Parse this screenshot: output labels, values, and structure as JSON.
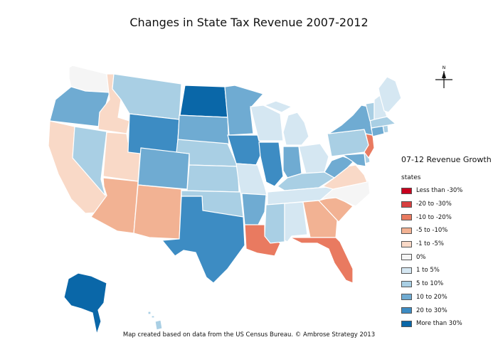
{
  "title": "Changes in State Tax Revenue 2007-2012",
  "legend": {
    "title": "07-12 Revenue Growth",
    "subtitle": "states",
    "items": [
      {
        "label": "Less than -30%",
        "color": "#c8001e"
      },
      {
        "label": "-20 to -30%",
        "color": "#d84040"
      },
      {
        "label": "-10 to -20%",
        "color": "#e97a60"
      },
      {
        "label": "-5 to -10%",
        "color": "#f2b293"
      },
      {
        "label": "-1 to -5%",
        "color": "#f9d9c7"
      },
      {
        "label": "0%",
        "color": "#f5f5f5"
      },
      {
        "label": "1 to 5%",
        "color": "#d5e7f2"
      },
      {
        "label": "5 to 10%",
        "color": "#a9cfe4"
      },
      {
        "label": "10 to 20%",
        "color": "#6fabd2"
      },
      {
        "label": "20 to 30%",
        "color": "#3d8cc3"
      },
      {
        "label": "More than 30%",
        "color": "#0a67a8"
      }
    ]
  },
  "compass": {
    "label": "N"
  },
  "footer": "Map created based on data from the US Census Bureau.  ©  Ambrose Strategy 2013",
  "states": [
    {
      "name": "Washington",
      "class": "0%"
    },
    {
      "name": "Oregon",
      "class": "10 to 20%"
    },
    {
      "name": "California",
      "class": "-1 to -5%"
    },
    {
      "name": "Idaho",
      "class": "-1 to -5%"
    },
    {
      "name": "Nevada",
      "class": "5 to 10%"
    },
    {
      "name": "Utah",
      "class": "-1 to -5%"
    },
    {
      "name": "Arizona",
      "class": "-5 to -10%"
    },
    {
      "name": "Montana",
      "class": "5 to 10%"
    },
    {
      "name": "Wyoming",
      "class": "20 to 30%"
    },
    {
      "name": "Colorado",
      "class": "10 to 20%"
    },
    {
      "name": "New Mexico",
      "class": "-5 to -10%"
    },
    {
      "name": "North Dakota",
      "class": "More than 30%"
    },
    {
      "name": "South Dakota",
      "class": "10 to 20%"
    },
    {
      "name": "Nebraska",
      "class": "5 to 10%"
    },
    {
      "name": "Kansas",
      "class": "5 to 10%"
    },
    {
      "name": "Oklahoma",
      "class": "5 to 10%"
    },
    {
      "name": "Texas",
      "class": "20 to 30%"
    },
    {
      "name": "Minnesota",
      "class": "10 to 20%"
    },
    {
      "name": "Iowa",
      "class": "20 to 30%"
    },
    {
      "name": "Missouri",
      "class": "1 to 5%"
    },
    {
      "name": "Arkansas",
      "class": "10 to 20%"
    },
    {
      "name": "Louisiana",
      "class": "-10 to -20%"
    },
    {
      "name": "Wisconsin",
      "class": "1 to 5%"
    },
    {
      "name": "Illinois",
      "class": "20 to 30%"
    },
    {
      "name": "Michigan",
      "class": "1 to 5%"
    },
    {
      "name": "Indiana",
      "class": "10 to 20%"
    },
    {
      "name": "Ohio",
      "class": "1 to 5%"
    },
    {
      "name": "Kentucky",
      "class": "5 to 10%"
    },
    {
      "name": "Tennessee",
      "class": "1 to 5%"
    },
    {
      "name": "Mississippi",
      "class": "5 to 10%"
    },
    {
      "name": "Alabama",
      "class": "1 to 5%"
    },
    {
      "name": "Georgia",
      "class": "-5 to -10%"
    },
    {
      "name": "Florida",
      "class": "-10 to -20%"
    },
    {
      "name": "South Carolina",
      "class": "-5 to -10%"
    },
    {
      "name": "North Carolina",
      "class": "0%"
    },
    {
      "name": "Virginia",
      "class": "-1 to -5%"
    },
    {
      "name": "West Virginia",
      "class": "10 to 20%"
    },
    {
      "name": "Maryland",
      "class": "10 to 20%"
    },
    {
      "name": "Delaware",
      "class": "5 to 10%"
    },
    {
      "name": "Pennsylvania",
      "class": "5 to 10%"
    },
    {
      "name": "New Jersey",
      "class": "-10 to -20%"
    },
    {
      "name": "New York",
      "class": "10 to 20%"
    },
    {
      "name": "Connecticut",
      "class": "10 to 20%"
    },
    {
      "name": "Rhode Island",
      "class": "5 to 10%"
    },
    {
      "name": "Massachusetts",
      "class": "5 to 10%"
    },
    {
      "name": "Vermont",
      "class": "5 to 10%"
    },
    {
      "name": "New Hampshire",
      "class": "1 to 5%"
    },
    {
      "name": "Maine",
      "class": "1 to 5%"
    },
    {
      "name": "Alaska",
      "class": "More than 30%"
    },
    {
      "name": "Hawaii",
      "class": "5 to 10%"
    }
  ]
}
